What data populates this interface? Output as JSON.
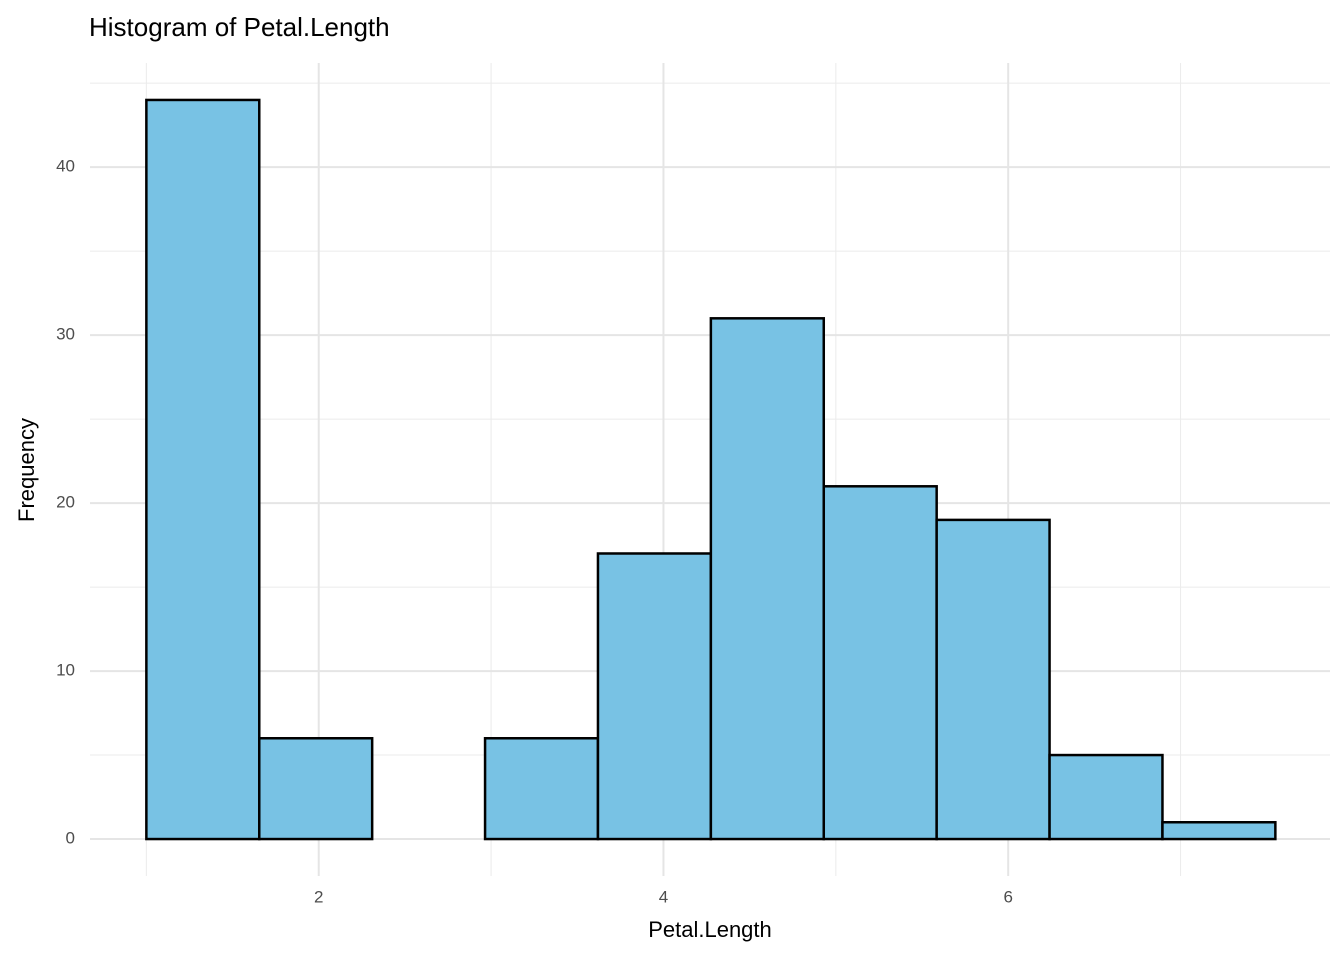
{
  "chart_data": {
    "type": "histogram",
    "title": "Histogram of Petal.Length",
    "x_label": "Petal.Length",
    "y_label": "Frequency",
    "bins": [
      1.0,
      1.655,
      2.31,
      2.965,
      3.62,
      4.275,
      4.93,
      5.585,
      6.24,
      6.895,
      7.55
    ],
    "counts": [
      44,
      6,
      0,
      6,
      17,
      31,
      21,
      19,
      5,
      1
    ],
    "color": "#78c2e4",
    "edge_color": "#000000",
    "xlim": [
      0.673,
      7.867
    ],
    "xticks": [
      2,
      4,
      6
    ],
    "xminor_ticks": [
      1,
      3,
      5,
      7
    ],
    "ylim": [
      -2.2,
      46.2
    ],
    "yticks": [
      0,
      10,
      20,
      30,
      40
    ],
    "yminor_ticks": [
      5,
      15,
      25,
      35,
      45
    ],
    "grid": true
  }
}
